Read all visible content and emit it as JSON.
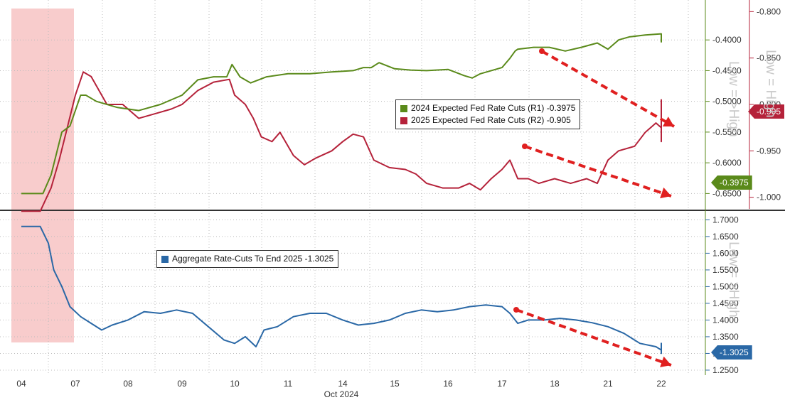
{
  "chart_data": [
    {
      "type": "line",
      "x_axis": {
        "tick_labels": [
          "04",
          "07",
          "08",
          "09",
          "10",
          "11",
          "14",
          "15",
          "16",
          "17",
          "18",
          "21",
          "22"
        ],
        "label": "Oct 2024"
      },
      "shaded_region": {
        "from": "04",
        "to": "07",
        "color": "#f8cccc"
      },
      "right_axis_1": {
        "ticks": [
          "-0.6500",
          "-0.6000",
          "-0.5500",
          "-0.5000",
          "-0.4500",
          "-0.4000"
        ],
        "ylim": [
          -0.675,
          -0.335
        ],
        "color": "#5a8a1a"
      },
      "right_axis_2": {
        "ticks": [
          "-1.000",
          "-0.950",
          "-0.900",
          "-0.850",
          "-0.800"
        ],
        "ylim": [
          -1.0125,
          -0.7875
        ],
        "color": "#b5223a"
      },
      "axis_notes": [
        "Low = >High",
        "Low = High"
      ],
      "legend": [
        {
          "label": "2024 Expected Fed Rate Cuts (R1)",
          "value": "-0.3975",
          "color": "#5a8a1a"
        },
        {
          "label": "2025 Expected Fed Rate Cuts (R2)",
          "value": "-0.905",
          "color": "#b5223a"
        }
      ],
      "series": [
        {
          "name": "2024 Expected Fed Rate Cuts (R1)",
          "color": "#5a8a1a",
          "axis": "R1",
          "last_value": "-0.3975",
          "points": [
            [
              0,
              -0.65
            ],
            [
              0.4,
              -0.65
            ],
            [
              0.55,
              -0.62
            ],
            [
              0.75,
              -0.55
            ],
            [
              0.9,
              -0.54
            ],
            [
              1.0,
              -0.515
            ],
            [
              1.1,
              -0.49
            ],
            [
              1.2,
              -0.49
            ],
            [
              1.4,
              -0.5
            ],
            [
              1.8,
              -0.51
            ],
            [
              2.2,
              -0.515
            ],
            [
              2.6,
              -0.505
            ],
            [
              3.0,
              -0.49
            ],
            [
              3.3,
              -0.465
            ],
            [
              3.6,
              -0.46
            ],
            [
              3.85,
              -0.46
            ],
            [
              3.95,
              -0.44
            ],
            [
              4.1,
              -0.46
            ],
            [
              4.3,
              -0.47
            ],
            [
              4.6,
              -0.46
            ],
            [
              5.0,
              -0.455
            ],
            [
              5.4,
              -0.455
            ],
            [
              5.8,
              -0.452
            ],
            [
              6.2,
              -0.45
            ],
            [
              6.4,
              -0.445
            ],
            [
              6.55,
              -0.445
            ],
            [
              6.7,
              -0.437
            ],
            [
              7.0,
              -0.447
            ],
            [
              7.3,
              -0.449
            ],
            [
              7.6,
              -0.45
            ],
            [
              8.0,
              -0.448
            ],
            [
              8.3,
              -0.458
            ],
            [
              8.45,
              -0.462
            ],
            [
              8.6,
              -0.455
            ],
            [
              8.8,
              -0.45
            ],
            [
              9.0,
              -0.445
            ],
            [
              9.15,
              -0.43
            ],
            [
              9.25,
              -0.418
            ],
            [
              9.3,
              -0.415
            ],
            [
              9.6,
              -0.412
            ],
            [
              9.9,
              -0.412
            ],
            [
              10.2,
              -0.418
            ],
            [
              10.5,
              -0.412
            ],
            [
              10.8,
              -0.405
            ],
            [
              11.0,
              -0.415
            ],
            [
              11.2,
              -0.4
            ],
            [
              11.4,
              -0.395
            ],
            [
              11.7,
              -0.392
            ],
            [
              12.0,
              -0.39
            ],
            [
              12.15,
              -0.393
            ],
            [
              12.25,
              -0.4
            ],
            [
              12.4,
              -0.404
            ]
          ]
        },
        {
          "name": "2025 Expected Fed Rate Cuts (R2)",
          "color": "#b5223a",
          "axis": "R2",
          "last_value": "-0.905",
          "points": [
            [
              0,
              -1.015
            ],
            [
              0.35,
              -1.015
            ],
            [
              0.55,
              -0.99
            ],
            [
              0.7,
              -0.96
            ],
            [
              0.85,
              -0.925
            ],
            [
              1.0,
              -0.89
            ],
            [
              1.15,
              -0.865
            ],
            [
              1.3,
              -0.87
            ],
            [
              1.6,
              -0.9
            ],
            [
              1.9,
              -0.9
            ],
            [
              2.2,
              -0.915
            ],
            [
              2.5,
              -0.91
            ],
            [
              2.8,
              -0.905
            ],
            [
              3.0,
              -0.9
            ],
            [
              3.3,
              -0.885
            ],
            [
              3.6,
              -0.876
            ],
            [
              3.9,
              -0.873
            ],
            [
              4.0,
              -0.89
            ],
            [
              4.2,
              -0.9
            ],
            [
              4.35,
              -0.915
            ],
            [
              4.5,
              -0.935
            ],
            [
              4.7,
              -0.94
            ],
            [
              4.85,
              -0.93
            ],
            [
              5.1,
              -0.955
            ],
            [
              5.3,
              -0.965
            ],
            [
              5.5,
              -0.958
            ],
            [
              5.8,
              -0.95
            ],
            [
              6.0,
              -0.94
            ],
            [
              6.2,
              -0.932
            ],
            [
              6.4,
              -0.935
            ],
            [
              6.6,
              -0.96
            ],
            [
              6.9,
              -0.968
            ],
            [
              7.2,
              -0.97
            ],
            [
              7.4,
              -0.975
            ],
            [
              7.6,
              -0.985
            ],
            [
              7.9,
              -0.99
            ],
            [
              8.2,
              -0.99
            ],
            [
              8.4,
              -0.985
            ],
            [
              8.6,
              -0.992
            ],
            [
              8.8,
              -0.98
            ],
            [
              9.0,
              -0.97
            ],
            [
              9.15,
              -0.96
            ],
            [
              9.3,
              -0.98
            ],
            [
              9.5,
              -0.98
            ],
            [
              9.7,
              -0.985
            ],
            [
              10.0,
              -0.98
            ],
            [
              10.3,
              -0.985
            ],
            [
              10.6,
              -0.98
            ],
            [
              10.8,
              -0.985
            ],
            [
              11.0,
              -0.96
            ],
            [
              11.2,
              -0.95
            ],
            [
              11.5,
              -0.945
            ],
            [
              11.7,
              -0.93
            ],
            [
              11.9,
              -0.92
            ],
            [
              12.0,
              -0.925
            ],
            [
              12.05,
              -0.94
            ],
            [
              12.1,
              -0.91
            ],
            [
              12.2,
              -0.895
            ],
            [
              12.3,
              -0.91
            ],
            [
              12.4,
              -0.9
            ]
          ]
        }
      ]
    },
    {
      "type": "line",
      "axis_ticks": [
        "1.7000",
        "1.6500",
        "1.6000",
        "1.5500",
        "1.5000",
        "1.4500",
        "1.4000",
        "1.3500",
        "1.3000",
        "1.2500"
      ],
      "ylim": [
        1.235,
        1.72
      ],
      "axis_note": "Low = >High",
      "legend": [
        {
          "label": "Aggregate Rate-Cuts To End 2025",
          "value": "-1.3025",
          "color": "#2a68a6"
        }
      ],
      "series": [
        {
          "name": "Aggregate Rate-Cuts To End 2025",
          "color": "#2a68a6",
          "last_value": "-1.3025",
          "points": [
            [
              0,
              1.68
            ],
            [
              0.35,
              1.68
            ],
            [
              0.5,
              1.63
            ],
            [
              0.6,
              1.55
            ],
            [
              0.75,
              1.5
            ],
            [
              0.9,
              1.44
            ],
            [
              1.1,
              1.41
            ],
            [
              1.3,
              1.39
            ],
            [
              1.5,
              1.37
            ],
            [
              1.7,
              1.385
            ],
            [
              2.0,
              1.4
            ],
            [
              2.3,
              1.425
            ],
            [
              2.6,
              1.42
            ],
            [
              2.9,
              1.43
            ],
            [
              3.2,
              1.42
            ],
            [
              3.5,
              1.38
            ],
            [
              3.8,
              1.34
            ],
            [
              4.0,
              1.33
            ],
            [
              4.2,
              1.35
            ],
            [
              4.4,
              1.32
            ],
            [
              4.55,
              1.37
            ],
            [
              4.8,
              1.38
            ],
            [
              5.1,
              1.41
            ],
            [
              5.4,
              1.42
            ],
            [
              5.7,
              1.42
            ],
            [
              6.0,
              1.4
            ],
            [
              6.3,
              1.385
            ],
            [
              6.6,
              1.39
            ],
            [
              6.9,
              1.4
            ],
            [
              7.2,
              1.42
            ],
            [
              7.5,
              1.43
            ],
            [
              7.8,
              1.425
            ],
            [
              8.1,
              1.43
            ],
            [
              8.4,
              1.44
            ],
            [
              8.7,
              1.445
            ],
            [
              9.0,
              1.44
            ],
            [
              9.15,
              1.42
            ],
            [
              9.3,
              1.39
            ],
            [
              9.5,
              1.4
            ],
            [
              9.8,
              1.4
            ],
            [
              10.1,
              1.405
            ],
            [
              10.4,
              1.4
            ],
            [
              10.7,
              1.392
            ],
            [
              11.0,
              1.38
            ],
            [
              11.3,
              1.36
            ],
            [
              11.6,
              1.33
            ],
            [
              11.9,
              1.32
            ],
            [
              12.1,
              1.31
            ],
            [
              12.2,
              1.3
            ],
            [
              12.3,
              1.33
            ],
            [
              12.4,
              1.3
            ]
          ]
        }
      ]
    }
  ],
  "annotations": {
    "arrow_color": "#e02020"
  },
  "colors": {
    "green": "#5a8a1a",
    "red": "#b5223a",
    "blue": "#2a68a6",
    "grid": "#bbbbbb",
    "divider": "#333333"
  }
}
